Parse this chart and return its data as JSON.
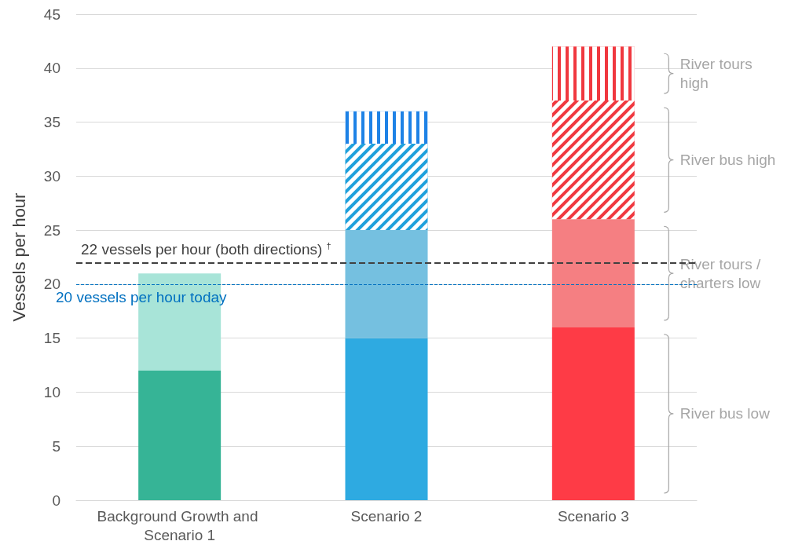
{
  "chart_data": {
    "type": "bar",
    "stacked": true,
    "ylabel": "Vessels per hour",
    "categories": [
      "Background Growth and Scenario 1",
      "Scenario 2",
      "Scenario 3"
    ],
    "series": [
      {
        "name": "River bus low",
        "colors": [
          "#36b496",
          "#2eaae1",
          "#fe3b46"
        ],
        "values": [
          12,
          15,
          16
        ]
      },
      {
        "name": "River tours / charters low",
        "colors": [
          "#a8e4d8",
          "#75c0e0",
          "#f57f82"
        ],
        "values": [
          9,
          10,
          10
        ]
      },
      {
        "name": "River bus high",
        "colors": [
          null,
          "#1ea0dc",
          "#f0383f"
        ],
        "values": [
          null,
          8,
          11
        ]
      },
      {
        "name": "River tours high",
        "colors": [
          null,
          "#1e82e6",
          "#f0383f"
        ],
        "values": [
          null,
          3,
          5
        ]
      }
    ],
    "ylim": [
      0,
      45
    ],
    "yticks": [
      0,
      5,
      10,
      15,
      20,
      25,
      30,
      35,
      40,
      45
    ],
    "grid": "y",
    "ref_lines": [
      {
        "axis": "y",
        "value": 22,
        "label": "22 vessels per hour (both directions) $^{†}$",
        "color": "#404040",
        "line_style": "dashed"
      },
      {
        "axis": "y",
        "value": 20,
        "label": "20 vessels per hour today",
        "color": "#0070c0",
        "line_style": "dashed"
      }
    ]
  }
}
